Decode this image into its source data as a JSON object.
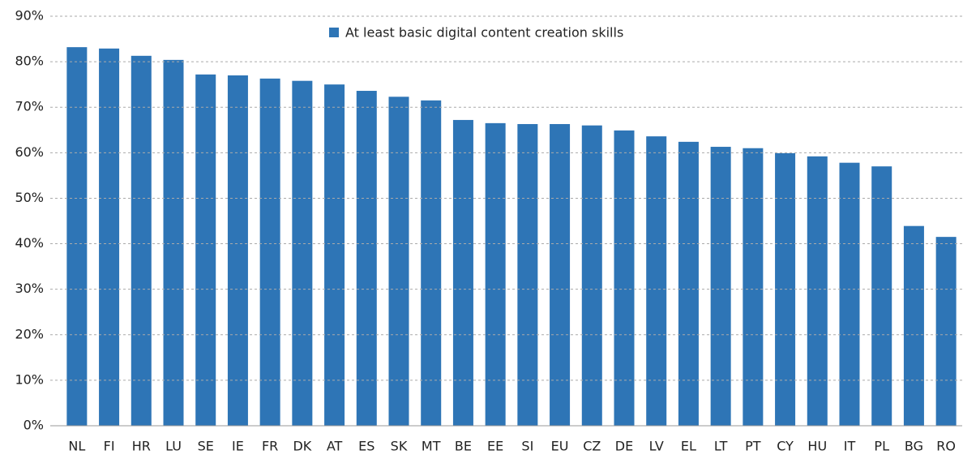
{
  "chart_data": {
    "type": "bar",
    "legend": "At least basic digital content creation skills",
    "categories": [
      "NL",
      "FI",
      "HR",
      "LU",
      "SE",
      "IE",
      "FR",
      "DK",
      "AT",
      "ES",
      "SK",
      "MT",
      "BE",
      "EE",
      "SI",
      "EU",
      "CZ",
      "DE",
      "LV",
      "EL",
      "LT",
      "PT",
      "CY",
      "HU",
      "IT",
      "PL",
      "BG",
      "RO"
    ],
    "values": [
      83.2,
      82.9,
      81.3,
      80.4,
      77.2,
      77.0,
      76.3,
      75.8,
      75.0,
      73.6,
      72.3,
      71.5,
      67.2,
      66.5,
      66.3,
      66.3,
      66.0,
      64.9,
      63.6,
      62.4,
      61.3,
      61.0,
      59.9,
      59.2,
      57.8,
      57.0,
      43.9,
      41.5
    ],
    "color": "#2e75b6",
    "ylim": [
      0,
      90
    ],
    "yticks": [
      {
        "value": 0,
        "label": "0%"
      },
      {
        "value": 10,
        "label": "10%"
      },
      {
        "value": 20,
        "label": "20%"
      },
      {
        "value": 30,
        "label": "30%"
      },
      {
        "value": 40,
        "label": "40%"
      },
      {
        "value": 50,
        "label": "50%"
      },
      {
        "value": 60,
        "label": "60%"
      },
      {
        "value": 70,
        "label": "70%"
      },
      {
        "value": 80,
        "label": "80%"
      },
      {
        "value": 90,
        "label": "90%"
      }
    ],
    "grid": true
  }
}
